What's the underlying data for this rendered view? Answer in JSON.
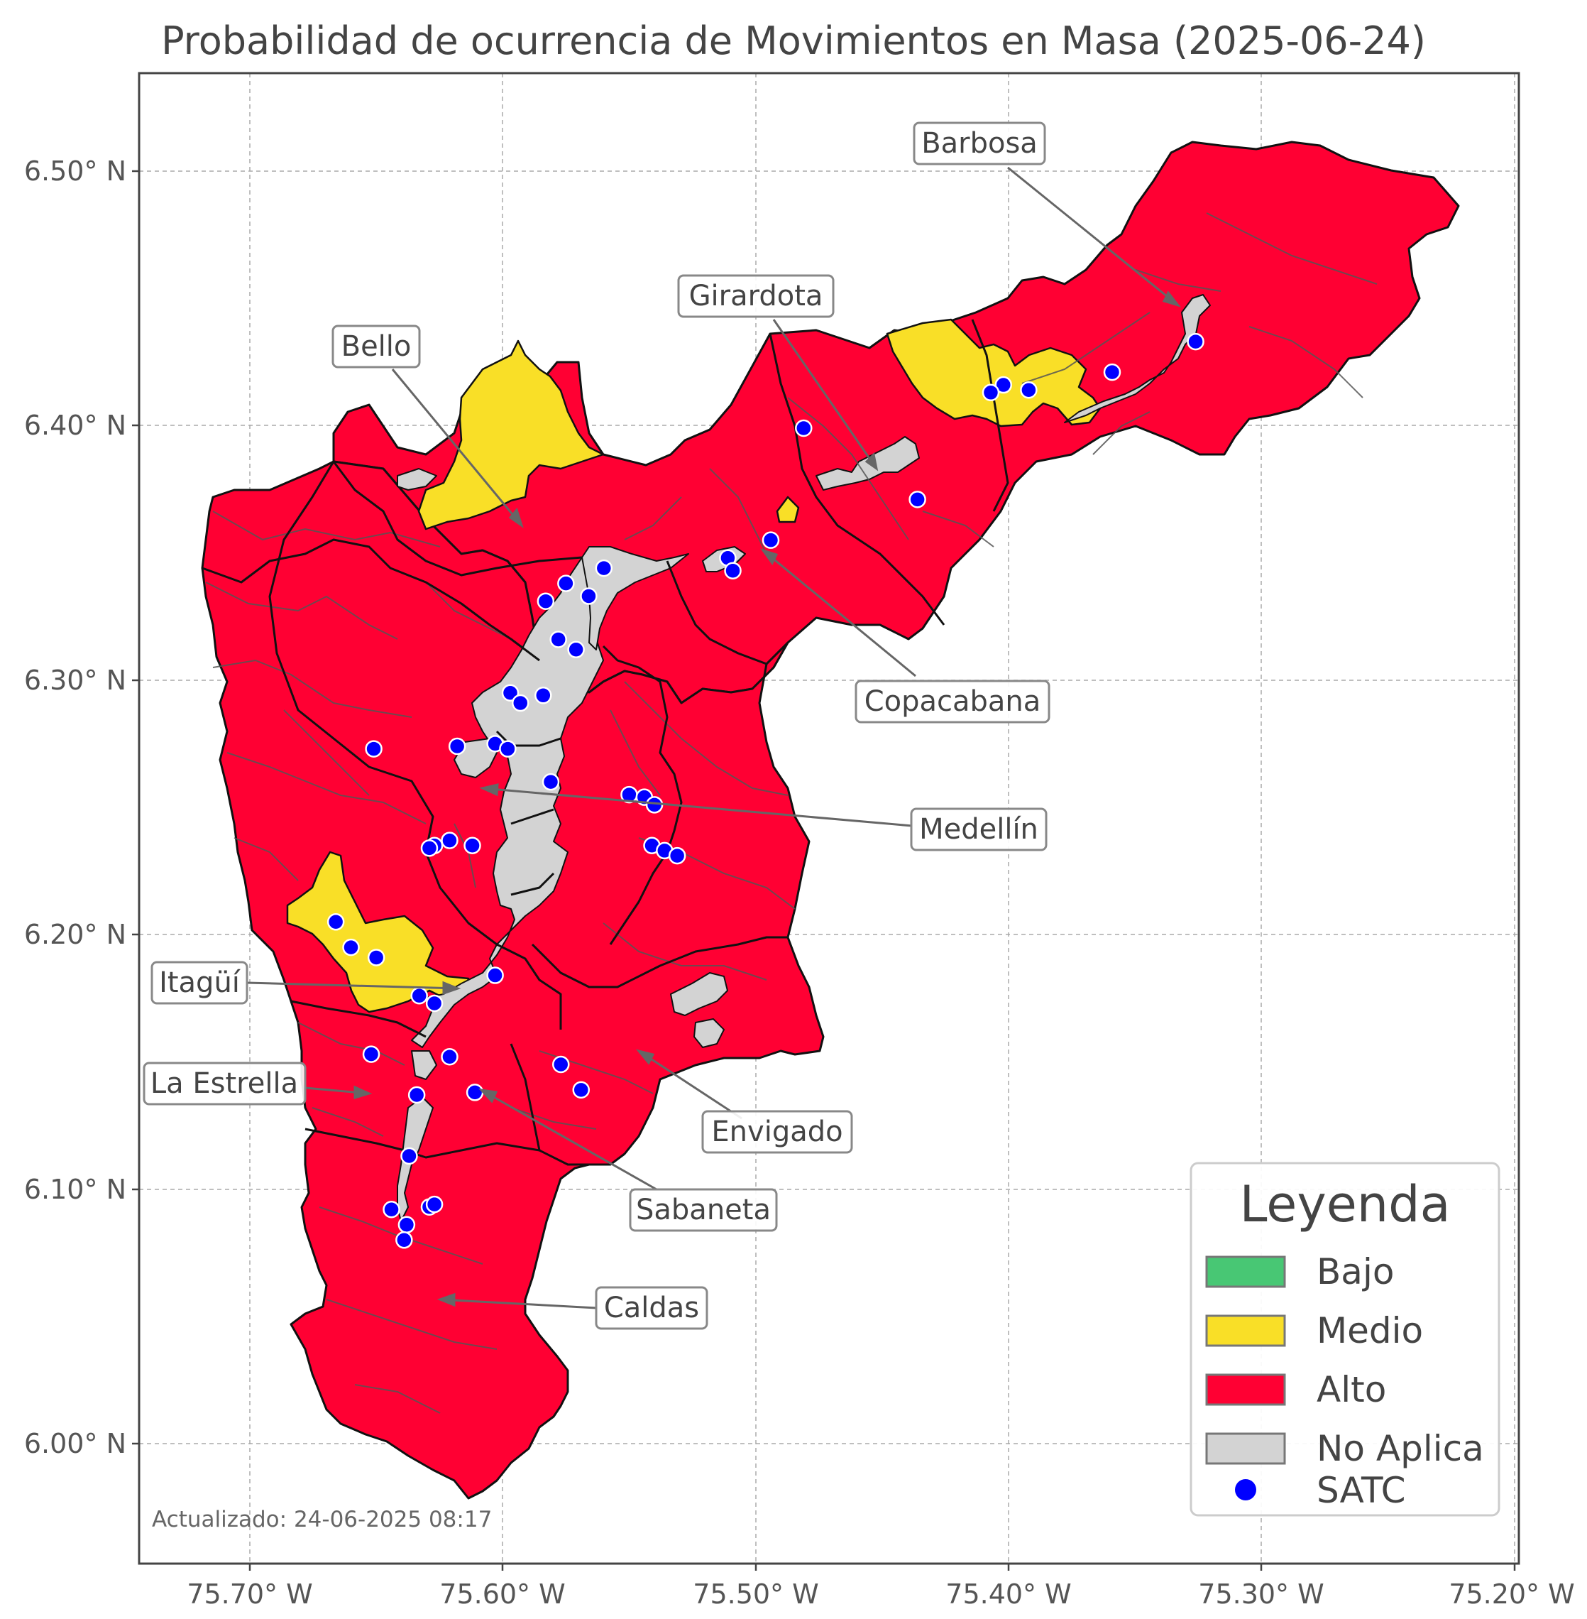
{
  "title": "Probabilidad de ocurrencia de Movimientos en Masa (2025-06-24)",
  "updated": "Actualizado: 24-06-2025 08:17",
  "x_ticks": [
    "75.70° W",
    "75.60° W",
    "75.50° W",
    "75.40° W",
    "75.30° W",
    "75.20° W"
  ],
  "y_ticks": [
    "6.50° N",
    "6.40° N",
    "6.30° N",
    "6.20° N",
    "6.10° N",
    "6.00° N"
  ],
  "municipalities": [
    "Barbosa",
    "Girardota",
    "Bello",
    "Copacabana",
    "Medellín",
    "Itagüí",
    "La Estrella",
    "Envigado",
    "Sabaneta",
    "Caldas"
  ],
  "legend": {
    "title": "Leyenda",
    "items": [
      {
        "label": "Bajo",
        "color": "#48c774"
      },
      {
        "label": "Medio",
        "color": "#f9df27"
      },
      {
        "label": "Alto",
        "color": "#ff0033"
      },
      {
        "label": "No Aplica",
        "color": "#d3d3d3"
      },
      {
        "label": "SATC",
        "color": "#0000ff"
      }
    ]
  },
  "colors": {
    "alto": "#ff0033",
    "medio": "#f9df27",
    "no_aplica": "#d3d3d3",
    "satc": "#0000ff",
    "border": "#111111"
  },
  "satc_stations": [
    [
      -75.326,
      6.433
    ],
    [
      -75.359,
      6.421
    ],
    [
      -75.392,
      6.414
    ],
    [
      -75.402,
      6.416
    ],
    [
      -75.407,
      6.413
    ],
    [
      -75.481,
      6.399
    ],
    [
      -75.436,
      6.371
    ],
    [
      -75.494,
      6.355
    ],
    [
      -75.511,
      6.348
    ],
    [
      -75.509,
      6.343
    ],
    [
      -75.56,
      6.344
    ],
    [
      -75.575,
      6.338
    ],
    [
      -75.566,
      6.333
    ],
    [
      -75.583,
      6.331
    ],
    [
      -75.578,
      6.316
    ],
    [
      -75.571,
      6.312
    ],
    [
      -75.584,
      6.294
    ],
    [
      -75.597,
      6.295
    ],
    [
      -75.593,
      6.291
    ],
    [
      -75.651,
      6.273
    ],
    [
      -75.618,
      6.274
    ],
    [
      -75.603,
      6.275
    ],
    [
      -75.598,
      6.273
    ],
    [
      -75.581,
      6.26
    ],
    [
      -75.55,
      6.255
    ],
    [
      -75.544,
      6.254
    ],
    [
      -75.54,
      6.251
    ],
    [
      -75.541,
      6.235
    ],
    [
      -75.536,
      6.233
    ],
    [
      -75.531,
      6.231
    ],
    [
      -75.612,
      6.235
    ],
    [
      -75.621,
      6.237
    ],
    [
      -75.627,
      6.235
    ],
    [
      -75.629,
      6.234
    ],
    [
      -75.666,
      6.205
    ],
    [
      -75.66,
      6.195
    ],
    [
      -75.65,
      6.191
    ],
    [
      -75.603,
      6.184
    ],
    [
      -75.633,
      6.176
    ],
    [
      -75.627,
      6.173
    ],
    [
      -75.652,
      6.153
    ],
    [
      -75.621,
      6.152
    ],
    [
      -75.577,
      6.149
    ],
    [
      -75.569,
      6.139
    ],
    [
      -75.611,
      6.138
    ],
    [
      -75.634,
      6.137
    ],
    [
      -75.637,
      6.113
    ],
    [
      -75.644,
      6.092
    ],
    [
      -75.629,
      6.093
    ],
    [
      -75.627,
      6.094
    ],
    [
      -75.638,
      6.086
    ],
    [
      -75.639,
      6.08
    ]
  ]
}
